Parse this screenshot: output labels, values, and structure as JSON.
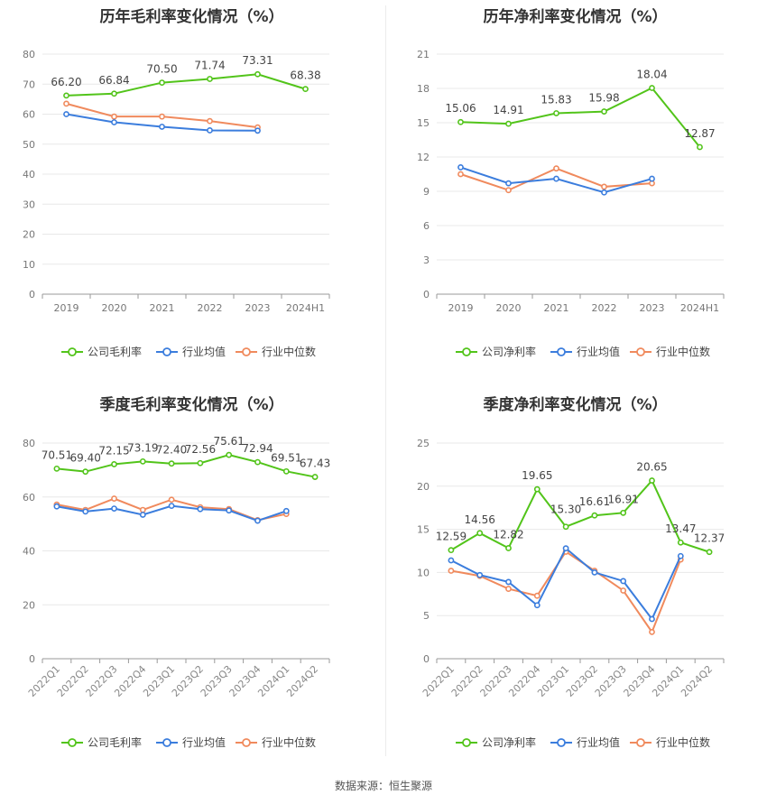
{
  "source": "数据来源：恒生聚源",
  "colors": {
    "company": "#52c41a",
    "avg": "#3b7ddd",
    "median": "#f08a5d"
  },
  "chart_data": [
    {
      "id": "annual-gross",
      "type": "line",
      "title": "历年毛利率变化情况（%）",
      "categories": [
        "2019",
        "2020",
        "2021",
        "2022",
        "2023",
        "2024H1"
      ],
      "yticks": [
        "0",
        "10",
        "20",
        "30",
        "40",
        "50",
        "60",
        "70",
        "80"
      ],
      "ylim": [
        0,
        80
      ],
      "grid": true,
      "legend_position": "bottom",
      "series": [
        {
          "name": "公司毛利率",
          "key": "company",
          "values": [
            66.2,
            66.84,
            70.5,
            71.74,
            73.31,
            68.38
          ],
          "labels": [
            "66.20",
            "66.84",
            "70.50",
            "71.74",
            "73.31",
            "68.38"
          ]
        },
        {
          "name": "行业均值",
          "key": "avg",
          "values": [
            60.0,
            57.3,
            55.8,
            54.6,
            54.5,
            null
          ]
        },
        {
          "name": "行业中位数",
          "key": "median",
          "values": [
            63.5,
            59.2,
            59.2,
            57.7,
            55.6,
            null
          ]
        }
      ]
    },
    {
      "id": "annual-net",
      "type": "line",
      "title": "历年净利率变化情况（%）",
      "categories": [
        "2019",
        "2020",
        "2021",
        "2022",
        "2023",
        "2024H1"
      ],
      "yticks": [
        "0",
        "3",
        "6",
        "9",
        "12",
        "15",
        "18",
        "21"
      ],
      "ylim": [
        0,
        21
      ],
      "grid": true,
      "legend_position": "bottom",
      "series": [
        {
          "name": "公司净利率",
          "key": "company",
          "values": [
            15.06,
            14.91,
            15.83,
            15.98,
            18.04,
            12.87
          ],
          "labels": [
            "15.06",
            "14.91",
            "15.83",
            "15.98",
            "18.04",
            "12.87"
          ]
        },
        {
          "name": "行业均值",
          "key": "avg",
          "values": [
            11.1,
            9.7,
            10.1,
            8.9,
            10.1,
            null
          ]
        },
        {
          "name": "行业中位数",
          "key": "median",
          "values": [
            10.5,
            9.1,
            11.0,
            9.4,
            9.7,
            null
          ]
        }
      ]
    },
    {
      "id": "quarterly-gross",
      "type": "line",
      "title": "季度毛利率变化情况（%）",
      "categories": [
        "2022Q1",
        "2022Q2",
        "2022Q3",
        "2022Q4",
        "2023Q1",
        "2023Q2",
        "2023Q3",
        "2023Q4",
        "2024Q1",
        "2024Q2"
      ],
      "yticks": [
        "0",
        "20",
        "40",
        "60",
        "80"
      ],
      "ylim": [
        0,
        80
      ],
      "grid": true,
      "legend_position": "bottom",
      "series": [
        {
          "name": "公司毛利率",
          "key": "company",
          "values": [
            70.51,
            69.4,
            72.15,
            73.19,
            72.4,
            72.56,
            75.61,
            72.94,
            69.51,
            67.43
          ],
          "labels": [
            "70.51",
            "69.40",
            "72.15",
            "73.19",
            "72.40",
            "72.56",
            "75.61",
            "72.94",
            "69.51",
            "67.43"
          ]
        },
        {
          "name": "行业均值",
          "key": "avg",
          "values": [
            56.5,
            54.6,
            55.7,
            53.4,
            56.7,
            55.5,
            55.0,
            51.2,
            54.8,
            null
          ]
        },
        {
          "name": "行业中位数",
          "key": "median",
          "values": [
            57.2,
            55.2,
            59.4,
            55.2,
            59.0,
            56.2,
            55.5,
            51.4,
            53.7,
            null
          ]
        }
      ]
    },
    {
      "id": "quarterly-net",
      "type": "line",
      "title": "季度净利率变化情况（%）",
      "categories": [
        "2022Q1",
        "2022Q2",
        "2022Q3",
        "2022Q4",
        "2023Q1",
        "2023Q2",
        "2023Q3",
        "2023Q4",
        "2024Q1",
        "2024Q2"
      ],
      "yticks": [
        "0",
        "5",
        "10",
        "15",
        "20",
        "25"
      ],
      "ylim": [
        0,
        25
      ],
      "grid": true,
      "legend_position": "bottom",
      "series": [
        {
          "name": "公司净利率",
          "key": "company",
          "values": [
            12.59,
            14.56,
            12.82,
            19.65,
            15.3,
            16.61,
            16.91,
            20.65,
            13.47,
            12.37
          ],
          "labels": [
            "12.59",
            "14.56",
            "12.82",
            "19.65",
            "15.30",
            "16.61",
            "16.91",
            "20.65",
            "13.47",
            "12.37"
          ]
        },
        {
          "name": "行业均值",
          "key": "avg",
          "values": [
            11.4,
            9.7,
            8.9,
            6.2,
            12.8,
            10.0,
            9.0,
            4.6,
            11.9,
            null
          ]
        },
        {
          "name": "行业中位数",
          "key": "median",
          "values": [
            10.2,
            9.6,
            8.1,
            7.3,
            12.4,
            10.2,
            7.9,
            3.1,
            11.5,
            null
          ]
        }
      ]
    }
  ]
}
